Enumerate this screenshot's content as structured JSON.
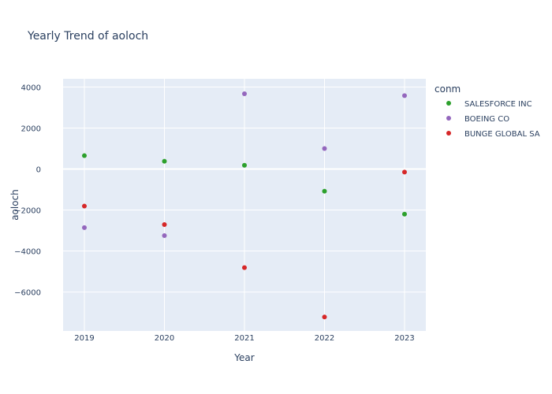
{
  "chart_data": {
    "type": "scatter",
    "title": "Yearly Trend of aoloch",
    "xlabel": "Year",
    "ylabel": "aoloch",
    "x": [
      "2019",
      "2020",
      "2021",
      "2022",
      "2023"
    ],
    "ylim": [
      -7900,
      4400
    ],
    "yticks": [
      -6000,
      -4000,
      -2000,
      0,
      2000,
      4000
    ],
    "ytick_labels": [
      "−6000",
      "−4000",
      "−2000",
      "0",
      "2000",
      "4000"
    ],
    "grid": true,
    "legend_title": "conm",
    "legend_position": "right",
    "series": [
      {
        "name": "SALESFORCE INC",
        "color": "#2ca02c",
        "values": [
          650,
          380,
          180,
          -1080,
          -2200
        ]
      },
      {
        "name": "BOEING CO",
        "color": "#9467bd",
        "values": [
          -2860,
          -3250,
          3670,
          1000,
          3580
        ]
      },
      {
        "name": "BUNGE GLOBAL SA",
        "color": "#d62728",
        "values": [
          -1810,
          -2710,
          -4810,
          -7220,
          -150
        ]
      }
    ]
  }
}
